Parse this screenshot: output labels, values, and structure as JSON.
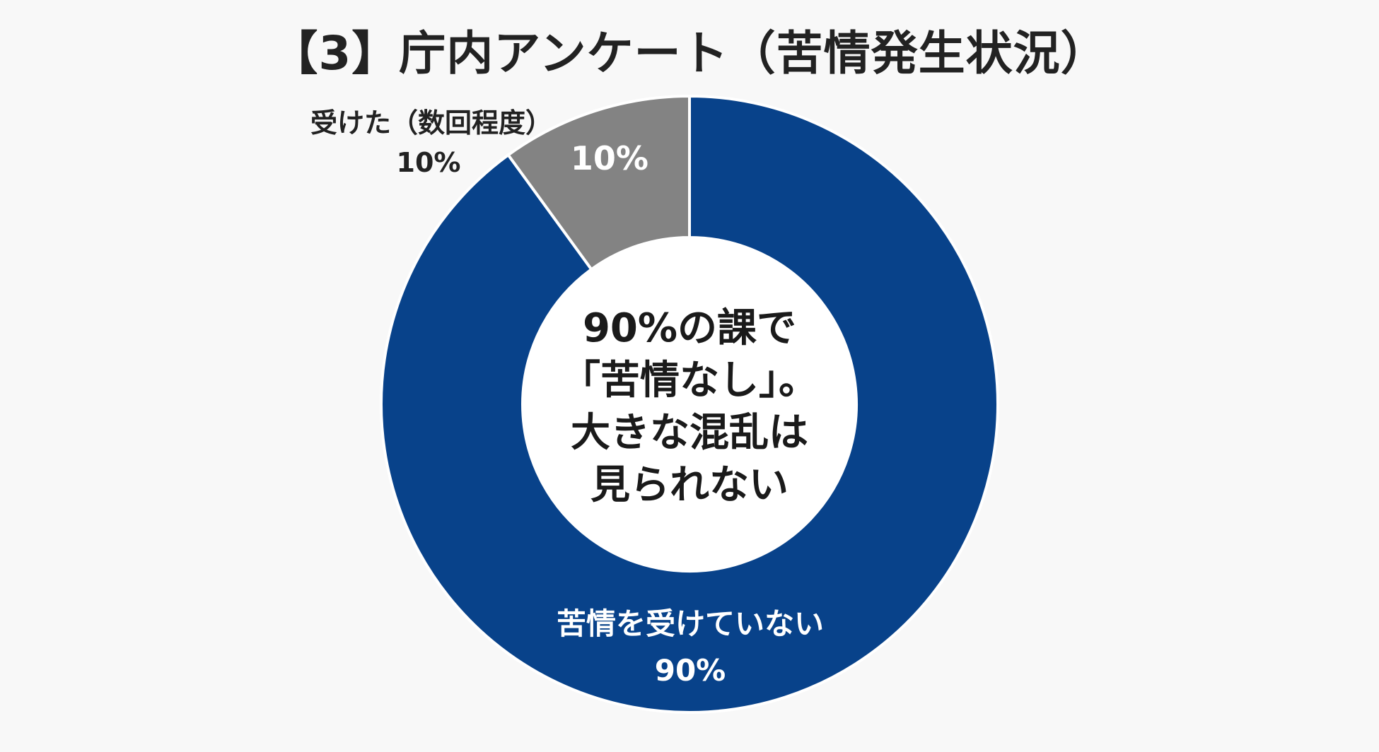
{
  "chart_data": {
    "type": "pie",
    "title": "【3】庁内アンケート（苦情発生状況）",
    "slices": [
      {
        "name": "苦情を受けていない",
        "value": 90,
        "label": "90%",
        "color": "#08428a"
      },
      {
        "name": "受けた（数回程度）",
        "value": 10,
        "label": "10%",
        "color": "#838383"
      }
    ],
    "center_text": [
      "90%の課で",
      "「苦情なし」。",
      "大きな混乱は",
      "見られない"
    ]
  }
}
